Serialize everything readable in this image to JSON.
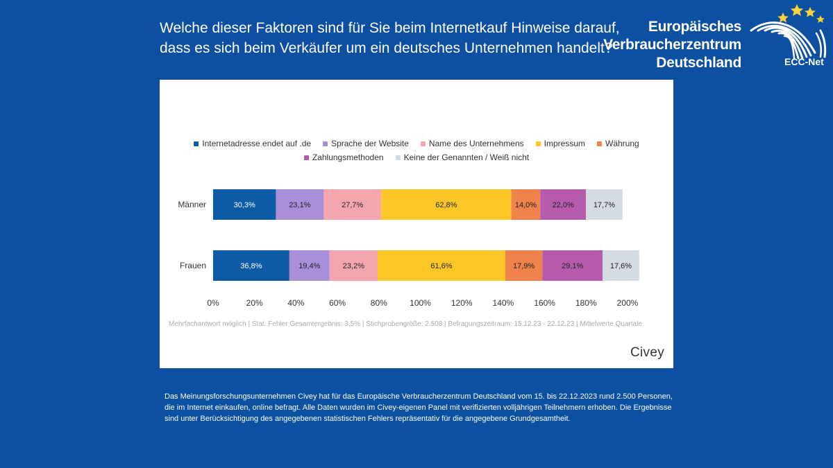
{
  "header": {
    "question_line1": "Welche dieser Faktoren sind für Sie beim Internetkauf Hinweise darauf,",
    "question_line2": "dass es sich beim Verkäufer um ein deutsches Unternehmen handelt?",
    "brand_line1": "Europäisches",
    "brand_line2": "Verbraucherzentrum",
    "brand_line3": "Deutschland",
    "logo_text": "ECC-Net"
  },
  "chart_data": {
    "type": "bar",
    "orientation": "horizontal",
    "stacked": true,
    "categories": [
      "Männer",
      "Frauen"
    ],
    "series": [
      {
        "name": "Internetadresse endet auf .de",
        "color": "#0d5aa7",
        "values": [
          30.3,
          36.8
        ],
        "labels": [
          "30,3%",
          "36,8%"
        ]
      },
      {
        "name": "Sprache der Website",
        "color": "#a98ed9",
        "values": [
          23.1,
          19.4
        ],
        "labels": [
          "23,1%",
          "19,4%"
        ]
      },
      {
        "name": "Name des Unternehmens",
        "color": "#f4a6ae",
        "values": [
          27.7,
          23.2
        ],
        "labels": [
          "27,7%",
          "23,2%"
        ]
      },
      {
        "name": "Impressum",
        "color": "#fdc827",
        "values": [
          62.8,
          61.6
        ],
        "labels": [
          "62,8%",
          "61,6%"
        ]
      },
      {
        "name": "Währung",
        "color": "#f0834c",
        "values": [
          14.0,
          17.9
        ],
        "labels": [
          "14,0%",
          "17,9%"
        ]
      },
      {
        "name": "Zahlungsmethoden",
        "color": "#b55aac",
        "values": [
          22.0,
          29.1
        ],
        "labels": [
          "22,0%",
          "29,1%"
        ]
      },
      {
        "name": "Keine der Genannten / Weiß nicht",
        "color": "#d5dbe2",
        "values": [
          17.7,
          17.6
        ],
        "labels": [
          "17,7%",
          "17,6%"
        ]
      }
    ],
    "x_ticks": [
      "0%",
      "20%",
      "40%",
      "60%",
      "80%",
      "100%",
      "120%",
      "140%",
      "160%",
      "180%",
      "200%"
    ],
    "xlim": [
      0,
      200
    ],
    "legend_position": "top",
    "grid": false
  },
  "footnote": "Mehrfachantwort möglich | Stat. Fehler Gesamtergebnis: 3,5% | Stichprobengröße: 2.508 | Befragungszeitraum: 15.12.23 - 22.12.23 | Mittelwerte Quartale",
  "source_brand": "Civey",
  "description": "Das Meinungsforschungsunternehmen Civey hat für das Europäische Verbraucherzentrum Deutschland vom 15. bis 22.12.2023 rund 2.500 Personen, die im Internet einkaufen, online befragt. Alle Daten wurden im Civey-eigenen Panel mit verifizierten volljährigen Teilnehmern erhoben. Die Ergebnisse sind unter Berücksichtigung des angegebenen statistischen Fehlers repräsentativ für die angegebene Grundgesamtheit."
}
